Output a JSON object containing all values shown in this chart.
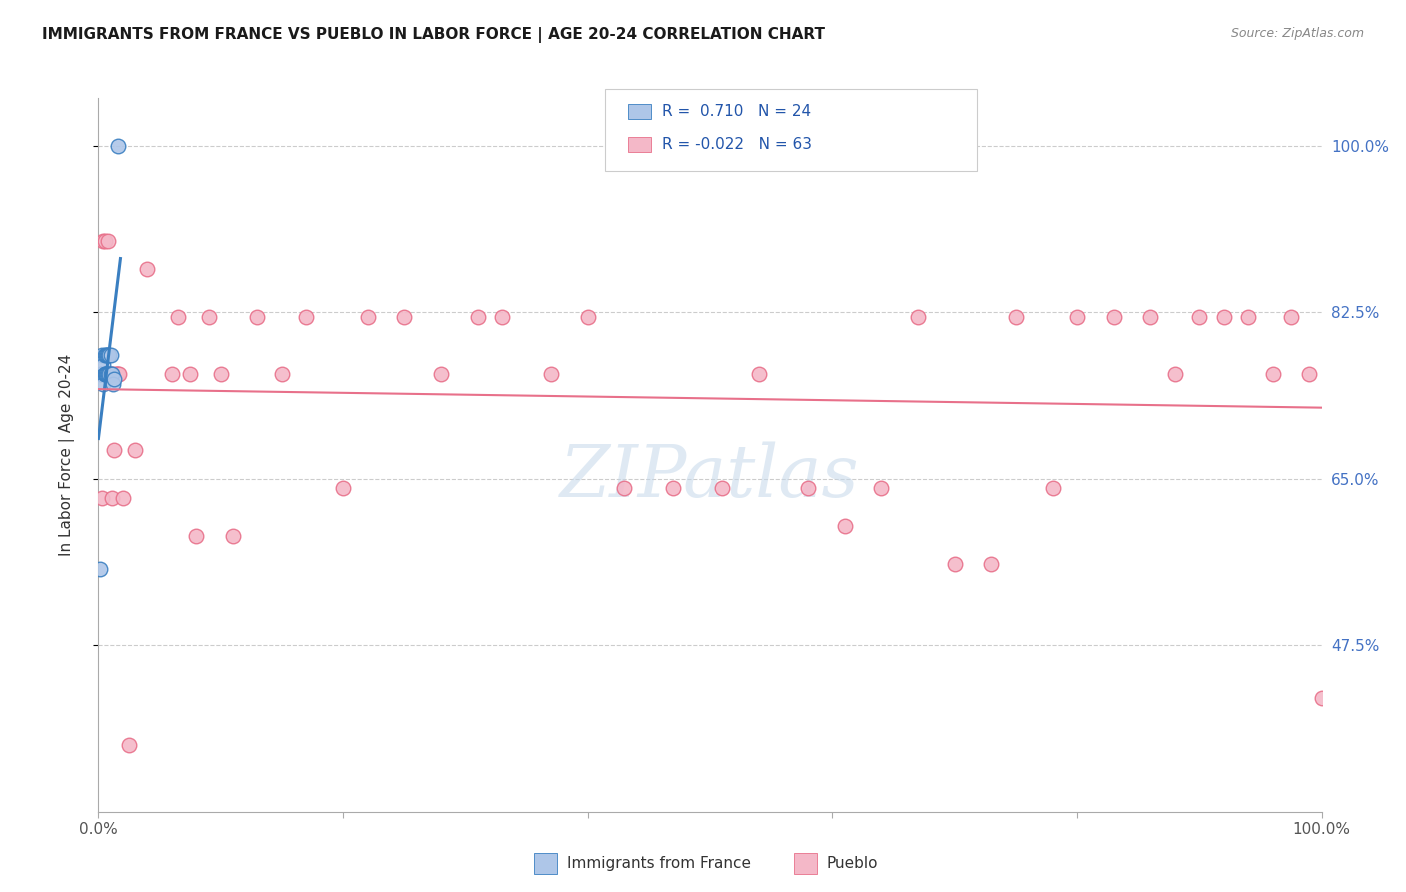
{
  "title": "IMMIGRANTS FROM FRANCE VS PUEBLO IN LABOR FORCE | AGE 20-24 CORRELATION CHART",
  "source": "Source: ZipAtlas.com",
  "ylabel": "In Labor Force | Age 20-24",
  "france_R": 0.71,
  "france_N": 24,
  "pueblo_R": -0.022,
  "pueblo_N": 63,
  "france_color": "#aec6e8",
  "pueblo_color": "#f4b8c8",
  "france_line_color": "#3a7fc1",
  "pueblo_line_color": "#e8708a",
  "watermark": "ZIPatlas",
  "ymin": 0.3,
  "ymax": 1.05,
  "yticks": [
    0.475,
    0.65,
    0.825,
    1.0
  ],
  "ytick_labels": [
    "47.5%",
    "65.0%",
    "82.5%",
    "100.0%"
  ],
  "france_x": [
    0.001,
    0.002,
    0.003,
    0.003,
    0.004,
    0.004,
    0.005,
    0.005,
    0.005,
    0.006,
    0.006,
    0.006,
    0.007,
    0.007,
    0.008,
    0.008,
    0.009,
    0.009,
    0.01,
    0.01,
    0.011,
    0.012,
    0.013,
    0.016
  ],
  "france_y": [
    0.555,
    0.76,
    0.76,
    0.78,
    0.75,
    0.77,
    0.76,
    0.78,
    0.76,
    0.76,
    0.78,
    0.76,
    0.76,
    0.78,
    0.76,
    0.78,
    0.76,
    0.78,
    0.76,
    0.78,
    0.76,
    0.75,
    0.755,
    1.0
  ],
  "pueblo_x": [
    0.002,
    0.003,
    0.004,
    0.005,
    0.005,
    0.006,
    0.007,
    0.008,
    0.008,
    0.009,
    0.01,
    0.011,
    0.012,
    0.013,
    0.014,
    0.015,
    0.016,
    0.017,
    0.02,
    0.025,
    0.03,
    0.04,
    0.06,
    0.065,
    0.075,
    0.08,
    0.09,
    0.1,
    0.11,
    0.13,
    0.15,
    0.17,
    0.2,
    0.22,
    0.25,
    0.28,
    0.31,
    0.33,
    0.37,
    0.4,
    0.43,
    0.47,
    0.51,
    0.54,
    0.58,
    0.61,
    0.64,
    0.67,
    0.7,
    0.73,
    0.75,
    0.78,
    0.8,
    0.83,
    0.86,
    0.88,
    0.9,
    0.92,
    0.94,
    0.96,
    0.975,
    0.99,
    1.0
  ],
  "pueblo_y": [
    0.76,
    0.63,
    0.9,
    0.76,
    0.9,
    0.76,
    0.76,
    0.76,
    0.9,
    0.76,
    0.76,
    0.63,
    0.76,
    0.68,
    0.76,
    0.76,
    0.76,
    0.76,
    0.63,
    0.37,
    0.68,
    0.87,
    0.76,
    0.82,
    0.76,
    0.59,
    0.82,
    0.76,
    0.59,
    0.82,
    0.76,
    0.82,
    0.64,
    0.82,
    0.82,
    0.76,
    0.82,
    0.82,
    0.76,
    0.82,
    0.64,
    0.64,
    0.64,
    0.76,
    0.64,
    0.6,
    0.64,
    0.82,
    0.56,
    0.56,
    0.82,
    0.64,
    0.82,
    0.82,
    0.82,
    0.76,
    0.82,
    0.82,
    0.82,
    0.76,
    0.82,
    0.76,
    0.42
  ]
}
